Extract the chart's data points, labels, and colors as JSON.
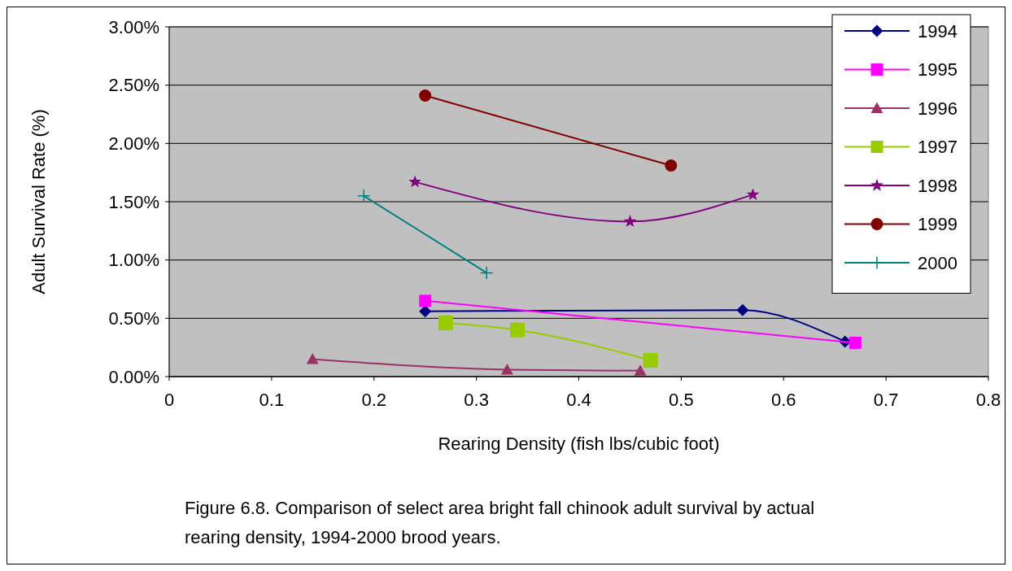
{
  "chart_data": {
    "type": "line",
    "xlabel": "Rearing Density (fish lbs/cubic foot)",
    "ylabel": "Adult Survival Rate (%)",
    "xlim": [
      0,
      0.8
    ],
    "xticks": [
      0,
      0.1,
      0.2,
      0.3,
      0.4,
      0.5,
      0.6,
      0.7,
      0.8
    ],
    "ylim": [
      0,
      3
    ],
    "yticks": [
      {
        "value": 0,
        "label": "0.00%"
      },
      {
        "value": 0.5,
        "label": "0.50%"
      },
      {
        "value": 1,
        "label": "1.00%"
      },
      {
        "value": 1.5,
        "label": "1.50%"
      },
      {
        "value": 2,
        "label": "2.00%"
      },
      {
        "value": 2.5,
        "label": "2.50%"
      },
      {
        "value": 3,
        "label": "3.00%"
      }
    ],
    "grid": "y",
    "legend": "top right",
    "series": [
      {
        "name": "1994",
        "color": "#000080",
        "marker": "diamond",
        "x": [
          0.25,
          0.56,
          0.66
        ],
        "values": [
          0.56,
          0.57,
          0.3
        ]
      },
      {
        "name": "1995",
        "color": "#ff00ff",
        "marker": "square",
        "x": [
          0.25,
          0.67
        ],
        "values": [
          0.65,
          0.29
        ]
      },
      {
        "name": "1996",
        "color": "#993366",
        "marker": "triangle",
        "x": [
          0.14,
          0.33,
          0.46
        ],
        "values": [
          0.15,
          0.06,
          0.05
        ]
      },
      {
        "name": "1997",
        "color": "#99cc00",
        "marker": "square",
        "x": [
          0.27,
          0.34,
          0.47
        ],
        "values": [
          0.46,
          0.4,
          0.14
        ]
      },
      {
        "name": "1998",
        "color": "#800080",
        "marker": "star",
        "x": [
          0.24,
          0.45,
          0.57
        ],
        "values": [
          1.67,
          1.33,
          1.56
        ]
      },
      {
        "name": "1999",
        "color": "#800000",
        "marker": "circle",
        "x": [
          0.25,
          0.49
        ],
        "values": [
          2.41,
          1.81
        ]
      },
      {
        "name": "2000",
        "color": "#008080",
        "marker": "cross",
        "x": [
          0.19,
          0.31
        ],
        "values": [
          1.55,
          0.89
        ]
      }
    ],
    "annotations": [
      "Figure 6.8.  Comparison of select area bright fall chinook adult survival by actual rearing density, 1994-2000 brood years."
    ]
  }
}
